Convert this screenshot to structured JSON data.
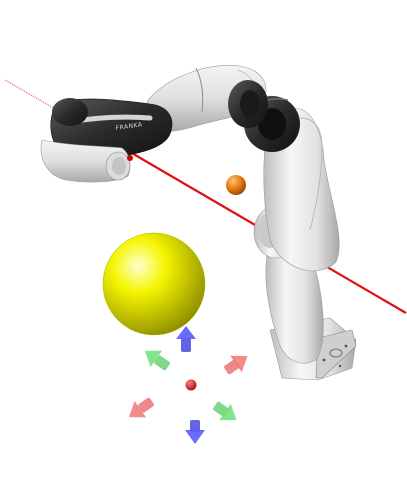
{
  "viewport": {
    "background": "#ffffff"
  },
  "robot": {
    "brand_text": "FRANKA",
    "body_color": "#e6e6e6",
    "joint_color": "#2f2f2f"
  },
  "laser": {
    "color": "#e01010"
  },
  "objects": {
    "sphere_color": "#f2f200",
    "target_ball_color": "#e87a10",
    "center_marker_color": "#d40000"
  },
  "gizmo": {
    "x_axis_color": "#e86a6a",
    "y_axis_color": "#5ecf6a",
    "z_axis_color": "#4848e0"
  }
}
